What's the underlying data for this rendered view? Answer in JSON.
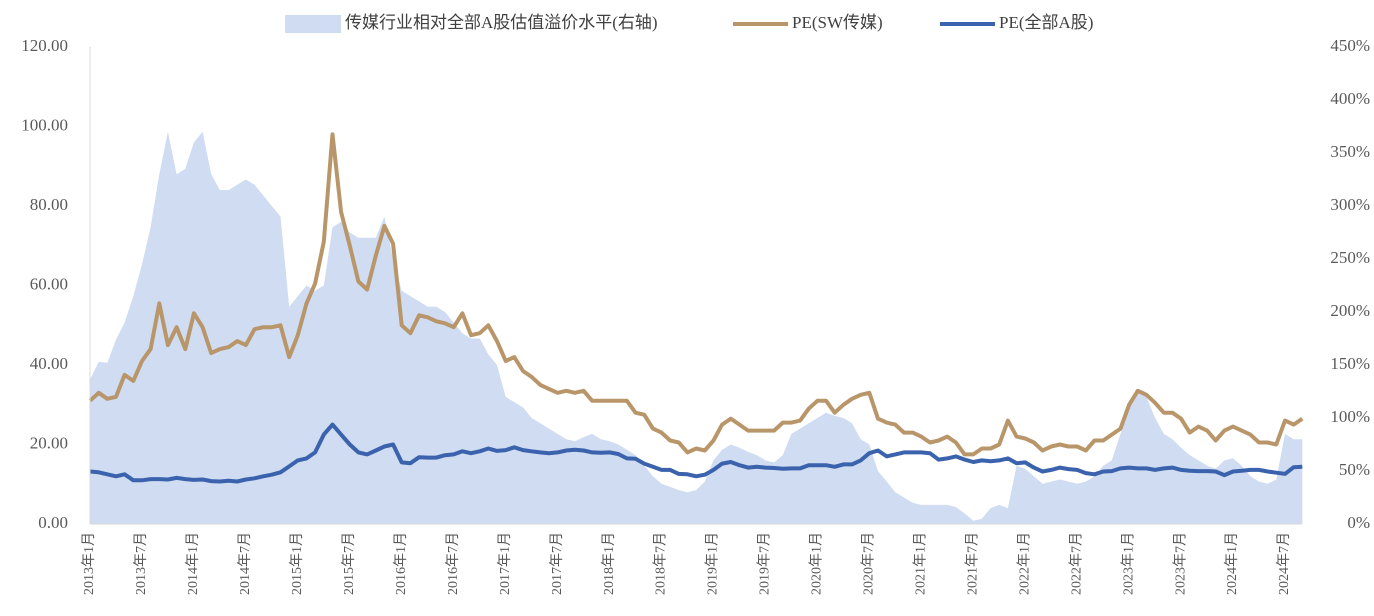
{
  "chart_data": {
    "type": "line",
    "categories": [
      "2013年1月",
      null,
      null,
      null,
      null,
      null,
      "2013年7月",
      null,
      null,
      null,
      null,
      null,
      "2014年1月",
      null,
      null,
      null,
      null,
      null,
      "2014年7月",
      null,
      null,
      null,
      null,
      null,
      "2015年1月",
      null,
      null,
      null,
      null,
      null,
      "2015年7月",
      null,
      null,
      null,
      null,
      null,
      "2016年1月",
      null,
      null,
      null,
      null,
      null,
      "2016年7月",
      null,
      null,
      null,
      null,
      null,
      "2017年1月",
      null,
      null,
      null,
      null,
      null,
      "2017年7月",
      null,
      null,
      null,
      null,
      null,
      "2018年1月",
      null,
      null,
      null,
      null,
      null,
      "2018年7月",
      null,
      null,
      null,
      null,
      null,
      "2019年1月",
      null,
      null,
      null,
      null,
      null,
      "2019年7月",
      null,
      null,
      null,
      null,
      null,
      "2020年1月",
      null,
      null,
      null,
      null,
      null,
      "2020年7月",
      null,
      null,
      null,
      null,
      null,
      "2021年1月",
      null,
      null,
      null,
      null,
      null,
      "2021年7月",
      null,
      null,
      null,
      null,
      null,
      "2022年1月",
      null,
      null,
      null,
      null,
      null,
      "2022年7月",
      null,
      null,
      null,
      null,
      null,
      "2023年1月",
      null,
      null,
      null,
      null,
      null,
      "2023年7月",
      null,
      null,
      null,
      null,
      null,
      "2024年1月",
      null,
      null,
      null,
      null,
      null,
      "2024年7月",
      null,
      null
    ],
    "series": [
      {
        "name": "传媒行业相对全部A股估值溢价水平(右轴)",
        "color": "#cfdcf1",
        "type": "area",
        "axis": "y2",
        "values": [
          136,
          153,
          152,
          174,
          190,
          215,
          245,
          280,
          330,
          370,
          330,
          335,
          360,
          370,
          330,
          315,
          315,
          320,
          325,
          320,
          310,
          300,
          290,
          205,
          215,
          225,
          220,
          225,
          280,
          285,
          275,
          270,
          270,
          270,
          290,
          250,
          220,
          215,
          210,
          205,
          205,
          200,
          190,
          180,
          175,
          175,
          160,
          150,
          120,
          115,
          110,
          100,
          95,
          90,
          85,
          80,
          78,
          82,
          85,
          80,
          78,
          75,
          70,
          65,
          55,
          45,
          38,
          35,
          32,
          30,
          32,
          40,
          60,
          70,
          75,
          72,
          68,
          65,
          60,
          58,
          65,
          85,
          90,
          95,
          100,
          105,
          102,
          100,
          95,
          80,
          75,
          50,
          40,
          30,
          25,
          20,
          18,
          18,
          18,
          18,
          16,
          10,
          3,
          5,
          15,
          18,
          15,
          55,
          52,
          45,
          38,
          40,
          42,
          40,
          38,
          40,
          45,
          55,
          60,
          85,
          110,
          125,
          120,
          100,
          85,
          80,
          72,
          65,
          60,
          55,
          52,
          60,
          62,
          55,
          45,
          40,
          38,
          42,
          85,
          80,
          80
        ]
      },
      {
        "name": "PE(SW传媒)",
        "color": "#b8966a",
        "values": [
          31,
          33,
          31.5,
          32,
          37.5,
          36,
          41,
          44,
          55.5,
          45,
          49.5,
          44,
          53,
          49.5,
          43,
          44,
          44.5,
          46,
          45,
          49,
          49.5,
          49.5,
          50,
          42,
          47.5,
          55.5,
          60.5,
          71,
          98,
          78.5,
          70,
          61,
          59,
          67.5,
          75,
          70.5,
          50,
          48,
          52.5,
          52,
          51,
          50.5,
          49.5,
          53,
          47.5,
          48,
          50,
          46,
          41,
          42,
          38.5,
          37,
          35,
          34,
          33,
          33.5,
          33,
          33.5,
          31,
          31,
          31,
          31,
          31,
          28,
          27.5,
          24,
          23,
          21,
          20.5,
          18,
          19,
          18.5,
          21,
          25,
          26.5,
          25,
          23.5,
          23.5,
          23.5,
          23.5,
          25.5,
          25.5,
          26,
          29,
          31,
          31,
          28,
          30,
          31.5,
          32.5,
          33,
          26.5,
          25.5,
          25,
          23,
          23,
          22,
          20.5,
          21,
          22,
          20.5,
          17.5,
          17.5,
          19,
          19,
          20,
          26,
          22,
          21.5,
          20.5,
          18.5,
          19.5,
          20,
          19.5,
          19.5,
          18.5,
          21,
          21,
          22.5,
          24,
          30,
          33.5,
          32.5,
          30.5,
          28,
          28,
          26.5,
          23,
          24.5,
          23.5,
          21,
          23.5,
          24.5,
          23.5,
          22.5,
          20.5,
          20.5,
          20,
          26,
          25,
          26.5
        ]
      },
      {
        "name": "PE(全部A股)",
        "color": "#3a62ad",
        "values": [
          13.2,
          13,
          12.5,
          12,
          12.5,
          11,
          11,
          11.3,
          11.3,
          11.2,
          11.6,
          11.3,
          11.1,
          11.2,
          10.8,
          10.7,
          10.9,
          10.7,
          11.2,
          11.5,
          12,
          12.4,
          13,
          14.5,
          16,
          16.5,
          18,
          22.5,
          25,
          22.5,
          20,
          18,
          17.5,
          18.5,
          19.5,
          20,
          15.5,
          15.3,
          16.8,
          16.7,
          16.7,
          17.3,
          17.5,
          18.3,
          17.8,
          18.3,
          19,
          18.4,
          18.6,
          19.3,
          18.6,
          18.3,
          18,
          17.8,
          18,
          18.5,
          18.7,
          18.5,
          18,
          17.9,
          18,
          17.6,
          16.5,
          16.4,
          15.2,
          14.4,
          13.6,
          13.6,
          12.6,
          12.5,
          12,
          12.4,
          13.6,
          15.2,
          15.6,
          14.8,
          14.2,
          14.4,
          14.2,
          14.1,
          13.9,
          14,
          14,
          14.8,
          14.8,
          14.8,
          14.4,
          15,
          15,
          16,
          17.8,
          18.5,
          17,
          17.5,
          18,
          18,
          18,
          17.8,
          16.2,
          16.5,
          17,
          16.2,
          15.6,
          16,
          15.8,
          16,
          16.5,
          15.3,
          15.5,
          14.2,
          13.2,
          13.6,
          14.2,
          13.8,
          13.6,
          12.8,
          12.5,
          13.2,
          13.3,
          14,
          14.2,
          14,
          14,
          13.6,
          14,
          14.2,
          13.6,
          13.4,
          13.3,
          13.3,
          13.2,
          12.3,
          13.2,
          13.4,
          13.6,
          13.6,
          13.2,
          12.9,
          12.6,
          14.3,
          14.4
        ]
      }
    ],
    "ylim": [
      0,
      120
    ],
    "yticks": [
      {
        "value": 0,
        "label": "0.00"
      },
      {
        "value": 20,
        "label": "20.00"
      },
      {
        "value": 40,
        "label": "40.00"
      },
      {
        "value": 60,
        "label": "60.00"
      },
      {
        "value": 80,
        "label": "80.00"
      },
      {
        "value": 100,
        "label": "100.00"
      },
      {
        "value": 120,
        "label": "120.00"
      }
    ],
    "y2lim": [
      0,
      450
    ],
    "y2ticks": [
      {
        "value": 0,
        "label": "0%"
      },
      {
        "value": 50,
        "label": "50%"
      },
      {
        "value": 100,
        "label": "100%"
      },
      {
        "value": 150,
        "label": "150%"
      },
      {
        "value": 200,
        "label": "200%"
      },
      {
        "value": 250,
        "label": "250%"
      },
      {
        "value": 300,
        "label": "300%"
      },
      {
        "value": 350,
        "label": "350%"
      },
      {
        "value": 400,
        "label": "400%"
      },
      {
        "value": 450,
        "label": "450%"
      }
    ],
    "legend": "top",
    "grid": false
  }
}
